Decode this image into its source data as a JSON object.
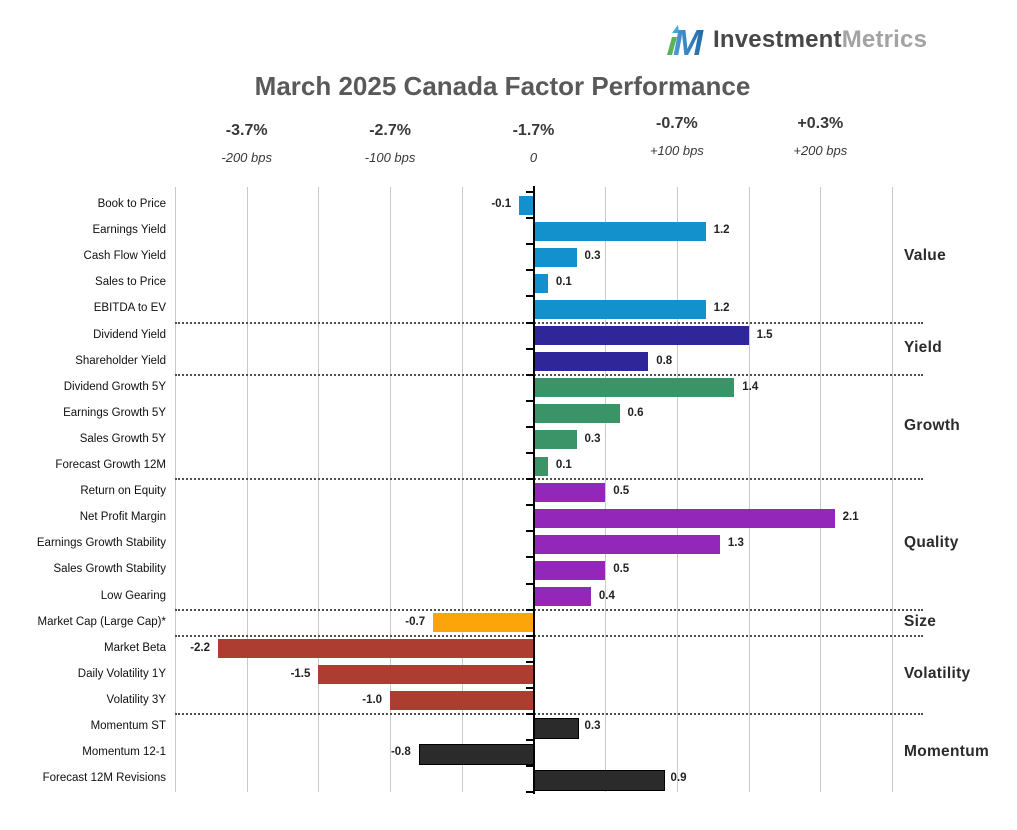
{
  "logo": {
    "part1": "Investment",
    "part2": "Metrics",
    "icon": "investment-metrics-iM-icon"
  },
  "chart_data": {
    "type": "bar",
    "orientation": "horizontal",
    "title": "March 2025 Canada Factor Performance",
    "xlabel": "",
    "ylabel": "",
    "xlim": [
      -2.5,
      2.5
    ],
    "grid": true,
    "value_unit": "relative bps (x100)",
    "axis_ticks": [
      {
        "pct": "-3.7%",
        "bps": "-200 bps",
        "rel": -2
      },
      {
        "pct": "-2.7%",
        "bps": "-100 bps",
        "rel": -1
      },
      {
        "pct": "-1.7%",
        "bps": "0",
        "rel": 0
      },
      {
        "pct": "-0.7%",
        "bps": "+100 bps",
        "rel": 1
      },
      {
        "pct": "+0.3%",
        "bps": "+200 bps",
        "rel": 2
      }
    ],
    "groups": [
      {
        "name": "Value",
        "color": "#1291CC",
        "factors": [
          {
            "label": "Book to Price",
            "value": -0.1
          },
          {
            "label": "Earnings Yield",
            "value": 1.2
          },
          {
            "label": "Cash Flow Yield",
            "value": 0.3
          },
          {
            "label": "Sales to Price",
            "value": 0.1
          },
          {
            "label": "EBITDA to EV",
            "value": 1.2
          }
        ]
      },
      {
        "name": "Yield",
        "color": "#2E2699",
        "factors": [
          {
            "label": "Dividend Yield",
            "value": 1.5
          },
          {
            "label": "Shareholder Yield",
            "value": 0.8
          }
        ]
      },
      {
        "name": "Growth",
        "color": "#3A9467",
        "factors": [
          {
            "label": "Dividend Growth 5Y",
            "value": 1.4
          },
          {
            "label": "Earnings Growth 5Y",
            "value": 0.6
          },
          {
            "label": "Sales Growth 5Y",
            "value": 0.3
          },
          {
            "label": "Forecast Growth 12M",
            "value": 0.1
          }
        ]
      },
      {
        "name": "Quality",
        "color": "#9227BA",
        "factors": [
          {
            "label": "Return on Equity",
            "value": 0.5
          },
          {
            "label": "Net Profit Margin",
            "value": 2.1
          },
          {
            "label": "Earnings Growth Stability",
            "value": 1.3
          },
          {
            "label": "Sales Growth Stability",
            "value": 0.5
          },
          {
            "label": "Low Gearing",
            "value": 0.4
          }
        ]
      },
      {
        "name": "Size",
        "color": "#FCA50A",
        "factors": [
          {
            "label": "Market Cap (Large Cap)*",
            "value": -0.7
          }
        ]
      },
      {
        "name": "Volatility",
        "color": "#AD3D30",
        "factors": [
          {
            "label": "Market Beta",
            "value": -2.2
          },
          {
            "label": "Daily Volatility 1Y",
            "value": -1.5
          },
          {
            "label": "Volatility 3Y",
            "value": -1.0
          }
        ]
      },
      {
        "name": "Momentum",
        "color": "#2B2B2B",
        "border": "#000000",
        "factors": [
          {
            "label": "Momentum ST",
            "value": 0.3
          },
          {
            "label": "Momentum 12-1",
            "value": -0.8
          },
          {
            "label": "Forecast 12M Revisions",
            "value": 0.9
          }
        ]
      }
    ]
  }
}
